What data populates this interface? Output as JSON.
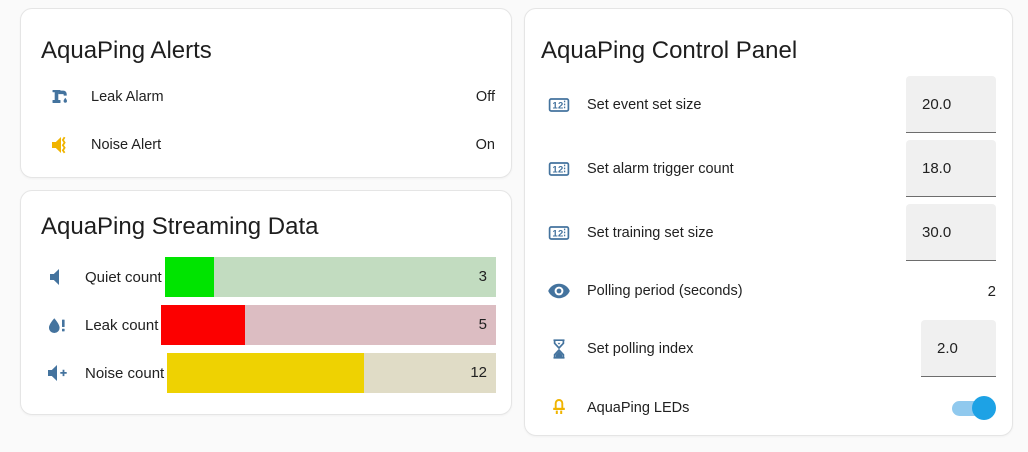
{
  "colors": {
    "icon_blue": "#44739e",
    "icon_amber": "#f0b400",
    "toggle_track": "#90c9ee",
    "toggle_thumb": "#1da2e5"
  },
  "alerts_card": {
    "title": "AquaPing Alerts",
    "rows": [
      {
        "icon": "faucet-leak-icon",
        "icon_color": "#44739e",
        "label": "Leak Alarm",
        "value": "Off"
      },
      {
        "icon": "volume-vibrate-icon",
        "icon_color": "#f0b400",
        "label": "Noise Alert",
        "value": "On"
      }
    ]
  },
  "streaming_card": {
    "title": "AquaPing Streaming Data",
    "max": 20,
    "bars": [
      {
        "icon": "volume-low-icon",
        "icon_color": "#44739e",
        "label": "Quiet count",
        "value": 3,
        "fill_color": "#00e400",
        "track_color": "#c2dcc0"
      },
      {
        "icon": "water-alert-icon",
        "icon_color": "#44739e",
        "label": "Leak count",
        "value": 5,
        "fill_color": "#fc0000",
        "track_color": "#dcbdc2"
      },
      {
        "icon": "volume-plus-icon",
        "icon_color": "#44739e",
        "label": "Noise count",
        "value": 12,
        "fill_color": "#eed202",
        "track_color": "#e0dcc6"
      }
    ]
  },
  "control_card": {
    "title": "AquaPing Control Panel",
    "rows": [
      {
        "icon": "counter-icon",
        "icon_color": "#44739e",
        "label": "Set event set size",
        "control": "input",
        "value": "20.0"
      },
      {
        "icon": "counter-icon",
        "icon_color": "#44739e",
        "label": "Set alarm trigger count",
        "control": "input",
        "value": "18.0"
      },
      {
        "icon": "counter-icon",
        "icon_color": "#44739e",
        "label": "Set training set size",
        "control": "input",
        "value": "30.0"
      },
      {
        "icon": "eye-icon",
        "icon_color": "#44739e",
        "label": "Polling period (seconds)",
        "control": "text",
        "value": "2"
      },
      {
        "icon": "timer-sand-icon",
        "icon_color": "#44739e",
        "label": "Set polling index",
        "control": "input",
        "value": "2.0"
      },
      {
        "icon": "led-icon",
        "icon_color": "#f0b400",
        "label": "AquaPing LEDs",
        "control": "toggle",
        "value": "on"
      }
    ]
  },
  "chart_data": {
    "type": "bar",
    "orientation": "horizontal",
    "title": "AquaPing Streaming Data",
    "categories": [
      "Quiet count",
      "Leak count",
      "Noise count"
    ],
    "values": [
      3,
      5,
      12
    ],
    "xlim": [
      0,
      20
    ],
    "legend": false,
    "grid": false
  }
}
